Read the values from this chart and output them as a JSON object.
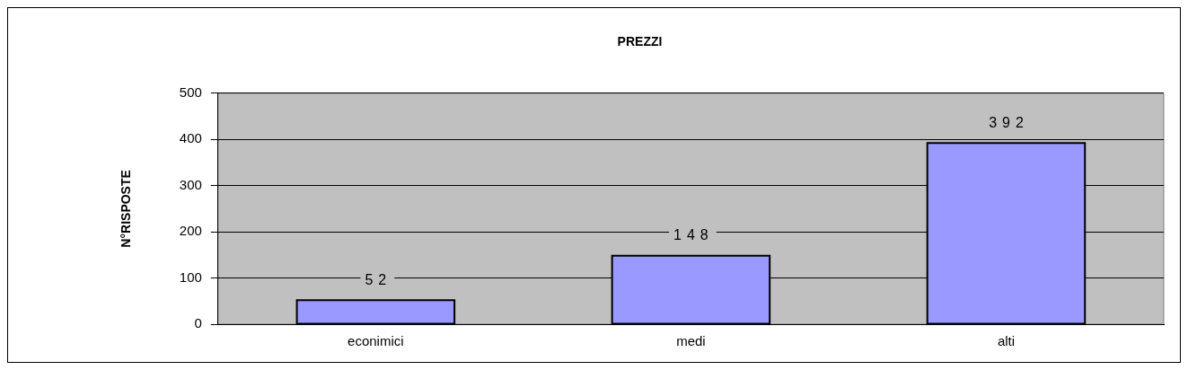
{
  "chart_data": {
    "type": "bar",
    "title": "PREZZI",
    "ylabel": "N°RISPOSTE",
    "categories": [
      "econimici",
      "medi",
      "alti"
    ],
    "values": [
      52,
      148,
      392
    ],
    "color": "#9999ff",
    "ylim": [
      0,
      500
    ],
    "yticks": [
      0,
      100,
      200,
      300,
      400,
      500
    ],
    "grid": "y",
    "data_labels": true
  }
}
